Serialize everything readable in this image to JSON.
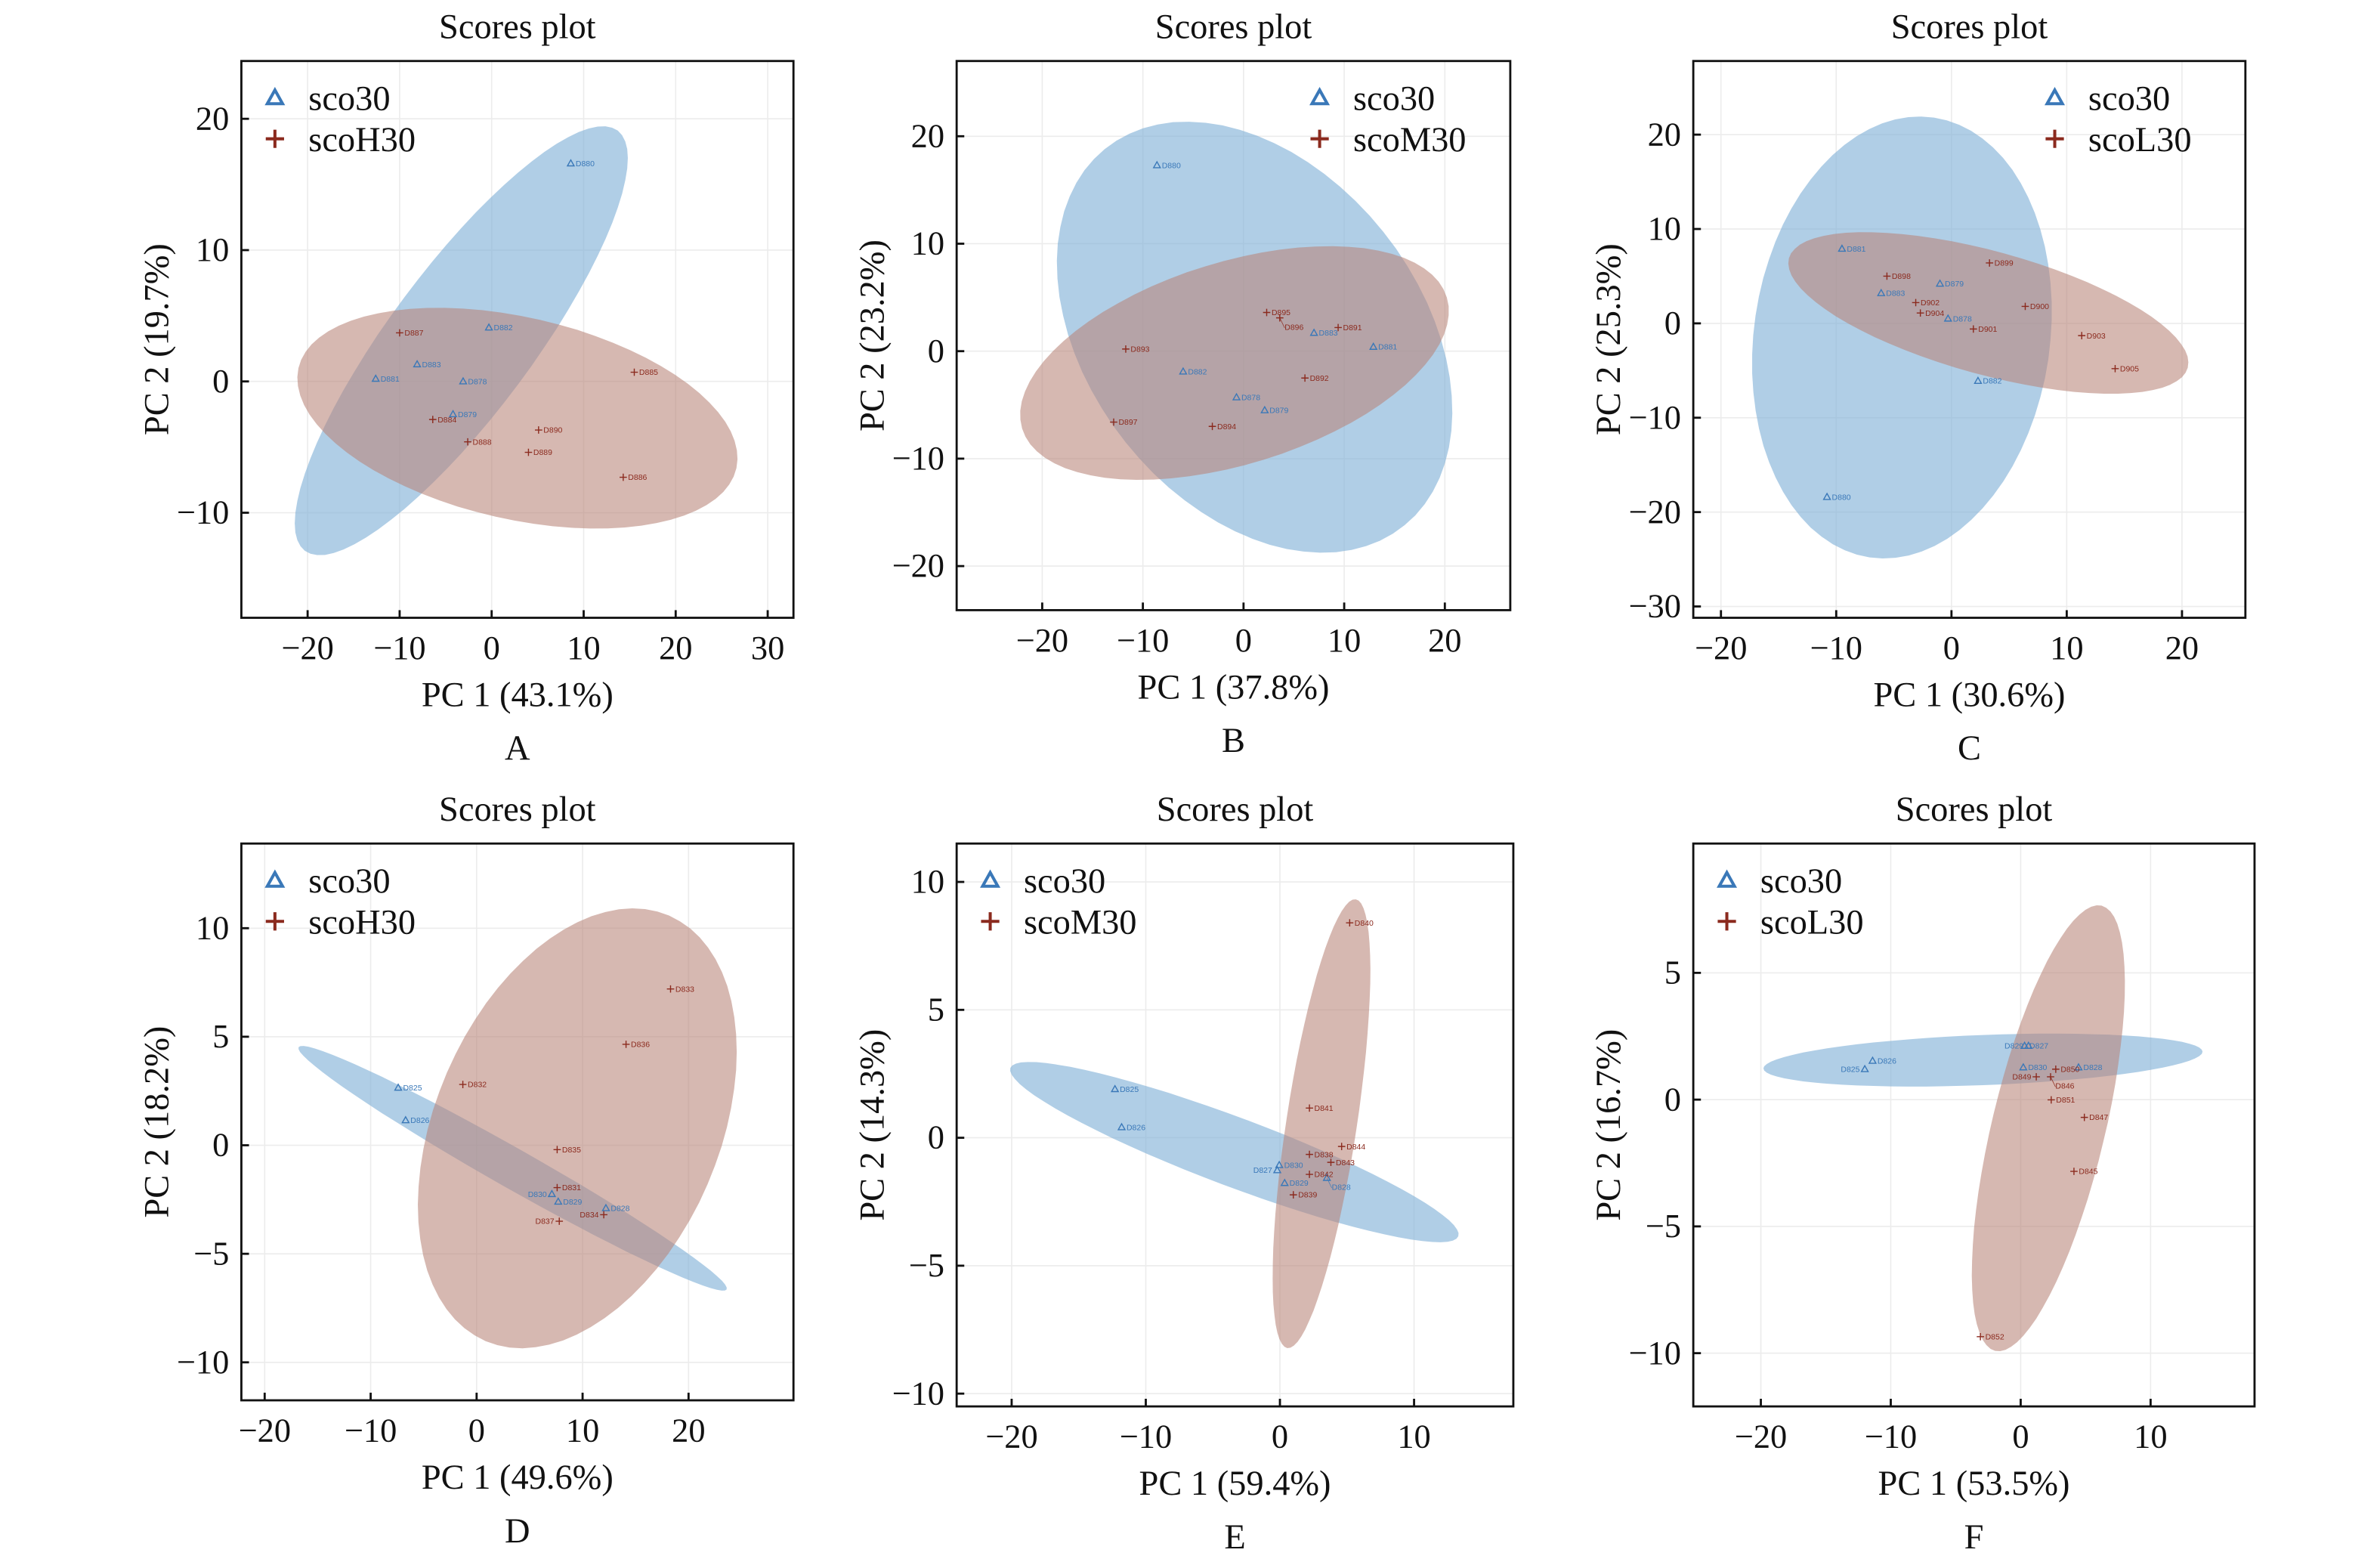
{
  "colors": {
    "sco30_marker": "#3a78b8",
    "treat_marker": "#8b2a1e",
    "sco30_fill": "#7fb0d6",
    "treat_fill": "#b98479"
  },
  "chart_data": [
    {
      "type": "scatter",
      "panel": "A",
      "title": "Scores plot",
      "xlabel": "PC 1 (43.1%)",
      "ylabel": "PC 2 (19.7%)",
      "xlim": [
        -27.2,
        32.8
      ],
      "ylim": [
        -18,
        24.4
      ],
      "xticks": [
        -20,
        -10,
        0,
        10,
        20,
        30
      ],
      "yticks": [
        -10,
        0,
        10,
        20
      ],
      "grid": true,
      "legend_position": "top-left",
      "series": [
        {
          "name": "sco30",
          "marker": "triangle",
          "points": [
            {
              "label": "D880",
              "x": 8.6,
              "y": 16.6
            },
            {
              "label": "D882",
              "x": -0.3,
              "y": 4.1
            },
            {
              "label": "D883",
              "x": -8.1,
              "y": 1.3
            },
            {
              "label": "D881",
              "x": -12.6,
              "y": 0.2
            },
            {
              "label": "D878",
              "x": -3.1,
              "y": 0.0
            },
            {
              "label": "D879",
              "x": -4.2,
              "y": -2.5
            }
          ],
          "ellipse": {
            "center": [
              -3.3,
              3.1
            ],
            "axis_u": [
              17.0,
              16.0
            ],
            "axis_v": [
              6.2,
              -3.3
            ]
          }
        },
        {
          "name": "scoH30",
          "marker": "plus",
          "points": [
            {
              "label": "D887",
              "x": -10.0,
              "y": 3.7
            },
            {
              "label": "D884",
              "x": -6.4,
              "y": -2.9
            },
            {
              "label": "D885",
              "x": 15.5,
              "y": 0.7
            },
            {
              "label": "D890",
              "x": 5.1,
              "y": -3.7
            },
            {
              "label": "D888",
              "x": -2.6,
              "y": -4.6
            },
            {
              "label": "D889",
              "x": 4.0,
              "y": -5.4
            },
            {
              "label": "D886",
              "x": 14.3,
              "y": -7.3
            }
          ],
          "ellipse": {
            "center": [
              2.8,
              -2.8
            ],
            "axis_u": [
              23.8,
              -3.8
            ],
            "axis_v": [
              -2.4,
              -7.5
            ]
          }
        }
      ]
    },
    {
      "type": "scatter",
      "panel": "B",
      "title": "Scores plot",
      "xlabel": "PC 1 (37.8%)",
      "ylabel": "PC 2 (23.2%)",
      "xlim": [
        -28.5,
        26.5
      ],
      "ylim": [
        -24.1,
        27
      ],
      "xticks": [
        -20,
        -10,
        0,
        10,
        20
      ],
      "yticks": [
        -20,
        -10,
        0,
        10,
        20
      ],
      "grid": true,
      "legend_position": "top-right",
      "series": [
        {
          "name": "sco30",
          "marker": "triangle",
          "points": [
            {
              "label": "D880",
              "x": -8.6,
              "y": 17.3
            },
            {
              "label": "D883",
              "x": 7.0,
              "y": 1.7
            },
            {
              "label": "D881",
              "x": 12.9,
              "y": 0.4
            },
            {
              "label": "D882",
              "x": -6.0,
              "y": -1.9
            },
            {
              "label": "D878",
              "x": -0.7,
              "y": -4.3
            },
            {
              "label": "D879",
              "x": 2.1,
              "y": -5.5
            }
          ],
          "ellipse": {
            "center": [
              1.1,
              1.3
            ],
            "axis_u": [
              14.9,
              -17.5
            ],
            "axis_v": [
              12.8,
              9.8
            ]
          }
        },
        {
          "name": "scoM30",
          "marker": "plus",
          "points": [
            {
              "label": "D895",
              "x": 2.3,
              "y": 3.6
            },
            {
              "label": "D896",
              "x": 3.6,
              "y": 3.1
            },
            {
              "label": "D891",
              "x": 9.4,
              "y": 2.2
            },
            {
              "label": "D893",
              "x": -11.7,
              "y": 0.2
            },
            {
              "label": "D892",
              "x": 6.1,
              "y": -2.5
            },
            {
              "label": "D897",
              "x": -12.9,
              "y": -6.6
            },
            {
              "label": "D894",
              "x": -3.1,
              "y": -7.0
            }
          ],
          "ellipse": {
            "center": [
              -0.9,
              -1.1
            ],
            "axis_u": [
              21.1,
              6.1
            ],
            "axis_v": [
              2.9,
              -9.0
            ]
          }
        }
      ]
    },
    {
      "type": "scatter",
      "panel": "C",
      "title": "Scores plot",
      "xlabel": "PC 1 (30.6%)",
      "ylabel": "PC 2 (25.3%)",
      "xlim": [
        -22.4,
        25.5
      ],
      "ylim": [
        -31.2,
        27.8
      ],
      "xticks": [
        -20,
        -10,
        0,
        10,
        20
      ],
      "yticks": [
        -30,
        -20,
        -10,
        0,
        10,
        20
      ],
      "grid": true,
      "legend_position": "top-right",
      "series": [
        {
          "name": "sco30",
          "marker": "triangle",
          "points": [
            {
              "label": "D881",
              "x": -9.5,
              "y": 7.9
            },
            {
              "label": "D879",
              "x": -1.0,
              "y": 4.2
            },
            {
              "label": "D883",
              "x": -6.1,
              "y": 3.2
            },
            {
              "label": "D878",
              "x": -0.3,
              "y": 0.5
            },
            {
              "label": "D882",
              "x": 2.3,
              "y": -6.1
            },
            {
              "label": "D880",
              "x": -10.8,
              "y": -18.4
            }
          ],
          "ellipse": {
            "center": [
              -4.3,
              -1.5
            ],
            "axis_u": [
              2.8,
              23.3
            ],
            "axis_v": [
              12.7,
              -2.3
            ]
          }
        },
        {
          "name": "scoL30",
          "marker": "plus",
          "points": [
            {
              "label": "D899",
              "x": 3.3,
              "y": 6.4
            },
            {
              "label": "D898",
              "x": -5.6,
              "y": 5.0
            },
            {
              "label": "D902",
              "x": -3.1,
              "y": 2.2
            },
            {
              "label": "D904",
              "x": -2.7,
              "y": 1.1
            },
            {
              "label": "D900",
              "x": 6.4,
              "y": 1.8
            },
            {
              "label": "D901",
              "x": 1.9,
              "y": -0.6
            },
            {
              "label": "D903",
              "x": 11.3,
              "y": -1.3
            },
            {
              "label": "D905",
              "x": 14.2,
              "y": -4.8
            }
          ],
          "ellipse": {
            "center": [
              3.2,
              1.1
            ],
            "axis_u": [
              17.3,
              -5.8
            ],
            "axis_v": [
              -1.4,
              -6.3
            ]
          }
        }
      ]
    },
    {
      "type": "scatter",
      "panel": "D",
      "title": "Scores plot",
      "xlabel": "PC 1 (49.6%)",
      "ylabel": "PC 2 (18.2%)",
      "xlim": [
        -22.2,
        29.9
      ],
      "ylim": [
        -11.75,
        13.9
      ],
      "xticks": [
        -20,
        -10,
        0,
        10,
        20
      ],
      "yticks": [
        -10,
        -5,
        0,
        5,
        10
      ],
      "grid": true,
      "legend_position": "top-left",
      "series": [
        {
          "name": "sco30",
          "marker": "triangle",
          "points": [
            {
              "label": "D825",
              "x": -7.4,
              "y": 2.65
            },
            {
              "label": "D826",
              "x": -6.7,
              "y": 1.15
            },
            {
              "label": "D830",
              "x": 7.1,
              "y": -2.25
            },
            {
              "label": "D829",
              "x": 7.7,
              "y": -2.6
            },
            {
              "label": "D828",
              "x": 12.2,
              "y": -2.9
            }
          ],
          "ellipse": {
            "center": [
              3.4,
              -1.06
            ],
            "axis_u": [
              20.2,
              -5.58
            ],
            "axis_v": [
              -0.92,
              -0.8
            ]
          }
        },
        {
          "name": "scoH30",
          "marker": "plus",
          "points": [
            {
              "label": "D833",
              "x": 18.3,
              "y": 7.2
            },
            {
              "label": "D836",
              "x": 14.1,
              "y": 4.65
            },
            {
              "label": "D832",
              "x": -1.3,
              "y": 2.8
            },
            {
              "label": "D835",
              "x": 7.6,
              "y": -0.2
            },
            {
              "label": "D831",
              "x": 7.6,
              "y": -1.95
            },
            {
              "label": "D834",
              "x": 12.0,
              "y": -3.2
            },
            {
              "label": "D837",
              "x": 7.8,
              "y": -3.5
            }
          ],
          "ellipse": {
            "center": [
              9.5,
              0.78
            ],
            "axis_u": [
              8.66,
              9.8
            ],
            "axis_v": [
              12.3,
              -2.57
            ]
          }
        }
      ]
    },
    {
      "type": "scatter",
      "panel": "E",
      "title": "Scores plot",
      "xlabel": "PC 1 (59.4%)",
      "ylabel": "PC 2 (14.3%)",
      "xlim": [
        -24.1,
        17.4
      ],
      "ylim": [
        -10.5,
        11.5
      ],
      "xticks": [
        -20,
        -10,
        0,
        10
      ],
      "yticks": [
        -10,
        -5,
        0,
        5,
        10
      ],
      "grid": true,
      "legend_position": "top-left",
      "series": [
        {
          "name": "sco30",
          "marker": "triangle",
          "points": [
            {
              "label": "D825",
              "x": -12.3,
              "y": 1.9
            },
            {
              "label": "D826",
              "x": -11.8,
              "y": 0.41
            },
            {
              "label": "D830",
              "x": -0.05,
              "y": -1.07
            },
            {
              "label": "D827",
              "x": -0.2,
              "y": -1.27
            },
            {
              "label": "D828",
              "x": 3.5,
              "y": -1.57
            },
            {
              "label": "D829",
              "x": 0.35,
              "y": -1.77
            }
          ],
          "ellipse": {
            "center": [
              -3.4,
              -0.56
            ],
            "axis_u": [
              16.7,
              -3.29
            ],
            "axis_v": [
              -0.89,
              -1.26
            ]
          }
        },
        {
          "name": "scoM30",
          "marker": "plus",
          "points": [
            {
              "label": "D840",
              "x": 5.2,
              "y": 8.4
            },
            {
              "label": "D841",
              "x": 2.2,
              "y": 1.16
            },
            {
              "label": "D844",
              "x": 4.6,
              "y": -0.34
            },
            {
              "label": "D838",
              "x": 2.2,
              "y": -0.65
            },
            {
              "label": "D843",
              "x": 3.8,
              "y": -0.96
            },
            {
              "label": "D842",
              "x": 2.2,
              "y": -1.43
            },
            {
              "label": "D839",
              "x": 1.0,
              "y": -2.23
            }
          ],
          "ellipse": {
            "center": [
              3.1,
              0.55
            ],
            "axis_u": [
              2.55,
              8.77
            ],
            "axis_v": [
              2.6,
              -0.21
            ]
          }
        }
      ]
    },
    {
      "type": "scatter",
      "panel": "F",
      "title": "Scores plot",
      "xlabel": "PC 1 (53.5%)",
      "ylabel": "PC 2 (16.7%)",
      "xlim": [
        -25.2,
        18.0
      ],
      "ylim": [
        -12.1,
        10.1
      ],
      "xticks": [
        -20,
        -10,
        0,
        10
      ],
      "yticks": [
        -10,
        -5,
        0,
        5
      ],
      "grid": true,
      "legend_position": "top-left",
      "series": [
        {
          "name": "sco30",
          "marker": "triangle",
          "points": [
            {
              "label": "D826",
              "x": -11.4,
              "y": 1.53
            },
            {
              "label": "D825",
              "x": -12.0,
              "y": 1.2
            },
            {
              "label": "D827",
              "x": 0.3,
              "y": 2.12
            },
            {
              "label": "D829",
              "x": 0.6,
              "y": 2.12
            },
            {
              "label": "D830",
              "x": 0.2,
              "y": 1.27
            },
            {
              "label": "D828",
              "x": 4.45,
              "y": 1.27
            }
          ],
          "ellipse": {
            "center": [
              -2.9,
              1.56
            ],
            "axis_u": [
              16.9,
              0.33
            ],
            "axis_v": [
              0,
              -0.99
            ]
          }
        },
        {
          "name": "scoL30",
          "marker": "plus",
          "points": [
            {
              "label": "D850",
              "x": 2.7,
              "y": 1.2
            },
            {
              "label": "D849",
              "x": 1.2,
              "y": 0.9
            },
            {
              "label": "D846",
              "x": 2.3,
              "y": 0.9
            },
            {
              "label": "D851",
              "x": 2.35,
              "y": -0.01
            },
            {
              "label": "D847",
              "x": 4.9,
              "y": -0.7
            },
            {
              "label": "D845",
              "x": 4.1,
              "y": -2.83
            },
            {
              "label": "D852",
              "x": -3.1,
              "y": -9.35
            }
          ],
          "ellipse": {
            "center": [
              2.13,
              -1.13
            ],
            "axis_u": [
              4.1,
              8.78
            ],
            "axis_v": [
              4.23,
              -0.54
            ]
          }
        }
      ]
    }
  ]
}
